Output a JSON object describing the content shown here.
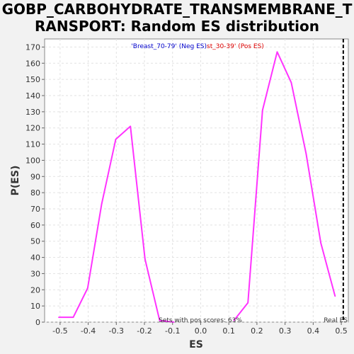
{
  "chart_data": {
    "type": "line",
    "title_line1": "GOBP_CARBOHYDRATE_TRANSMEMBRANE_T",
    "title_line2": "RANSPORT: Random ES distribution",
    "xlabel": "ES",
    "ylabel": "P(ES)",
    "xlim": [
      -0.555,
      0.525
    ],
    "ylim": [
      0,
      175
    ],
    "x_ticks": [
      -0.5,
      -0.4,
      -0.3,
      -0.2,
      -0.1,
      0.0,
      0.1,
      0.2,
      0.3,
      0.4,
      0.5
    ],
    "x_tick_labels": [
      "-0.5",
      "-0.4",
      "-0.3",
      "-0.2",
      "-0.1",
      "0.0",
      "0.1",
      "0.2",
      "0.3",
      "0.4",
      "0.5"
    ],
    "y_ticks": [
      0,
      10,
      20,
      30,
      40,
      50,
      60,
      70,
      80,
      90,
      100,
      110,
      120,
      130,
      140,
      150,
      160,
      170
    ],
    "grid": true,
    "series": [
      {
        "name": "'Breast_70-79' (Neg ES)",
        "color": "#ff33ff",
        "x": [
          -0.505,
          -0.453,
          -0.402,
          -0.352,
          -0.302,
          -0.25,
          -0.198,
          -0.146,
          -0.095
        ],
        "y": [
          3,
          3,
          21,
          73,
          113,
          121,
          39,
          1,
          0
        ]
      },
      {
        "name": "st_30-39' (Pos ES)",
        "color": "#ff33ff",
        "x": [
          0.118,
          0.168,
          0.22,
          0.272,
          0.322,
          0.375,
          0.427,
          0.478
        ],
        "y": [
          1,
          12,
          131,
          167,
          148,
          104,
          49,
          16
        ]
      }
    ],
    "legend": [
      {
        "text": "'Breast_70-79' (Neg ES)",
        "color": "#0000cc"
      },
      {
        "text": "st_30-39' (Pos ES)",
        "color": "#dd0000"
      }
    ],
    "real_es": 0.507,
    "real_es_label": "Real ES",
    "annotation": "Sets with pos scores: 63%"
  }
}
